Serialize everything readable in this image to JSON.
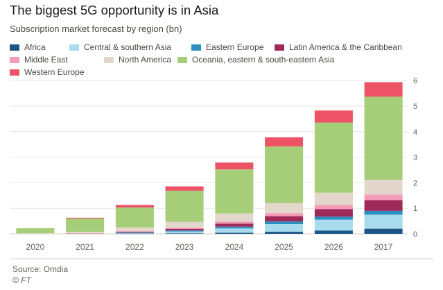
{
  "title": "The biggest 5G opportunity is in Asia",
  "subtitle": "Subscription market forecast by region (bn)",
  "source": "Source: Omdia",
  "brand": "© FT",
  "colors": {
    "background": "#ffffff",
    "gridline": "#e9e6e3",
    "axis_text": "#66605c"
  },
  "chart_data": {
    "type": "bar",
    "stacked": true,
    "title": "The biggest 5G opportunity is in Asia",
    "subtitle": "Subscription market forecast by region (bn)",
    "xlabel": "",
    "ylabel": "",
    "ylim": [
      0,
      6
    ],
    "yticks": [
      "0",
      "1",
      "2",
      "3",
      "4",
      "5",
      "6"
    ],
    "y_axis_side": "right",
    "grid": true,
    "legend_position": "top",
    "categories": [
      "2020",
      "2021",
      "2022",
      "2023",
      "2024",
      "2025",
      "2026",
      "2017"
    ],
    "series": [
      {
        "name": "Africa",
        "color": "#1a5584",
        "values": [
          0.0,
          0.0,
          0.01,
          0.02,
          0.04,
          0.08,
          0.13,
          0.2
        ]
      },
      {
        "name": "Central & southern Asia",
        "color": "#a8dcec",
        "values": [
          0.0,
          0.0,
          0.02,
          0.07,
          0.17,
          0.3,
          0.42,
          0.55
        ]
      },
      {
        "name": "Eastern Europe",
        "color": "#2b8fc2",
        "values": [
          0.0,
          0.0,
          0.02,
          0.04,
          0.07,
          0.1,
          0.12,
          0.15
        ]
      },
      {
        "name": "Latin America & the Caribbean",
        "color": "#9e2a5a",
        "values": [
          0.0,
          0.01,
          0.03,
          0.06,
          0.12,
          0.21,
          0.3,
          0.42
        ]
      },
      {
        "name": "Middle East",
        "color": "#f49bb8",
        "values": [
          0.0,
          0.0,
          0.02,
          0.04,
          0.08,
          0.12,
          0.16,
          0.22
        ]
      },
      {
        "name": "North America",
        "color": "#e3d7cc",
        "values": [
          0.02,
          0.07,
          0.15,
          0.24,
          0.32,
          0.39,
          0.48,
          0.58
        ]
      },
      {
        "name": "Oceania, eastern & south-eastern Asia",
        "color": "#a6cd78",
        "values": [
          0.2,
          0.52,
          0.78,
          1.22,
          1.72,
          2.22,
          2.75,
          3.25
        ]
      },
      {
        "name": "Western Europe",
        "color": "#ec5366",
        "values": [
          0.0,
          0.03,
          0.1,
          0.17,
          0.27,
          0.36,
          0.47,
          0.57
        ]
      }
    ]
  }
}
